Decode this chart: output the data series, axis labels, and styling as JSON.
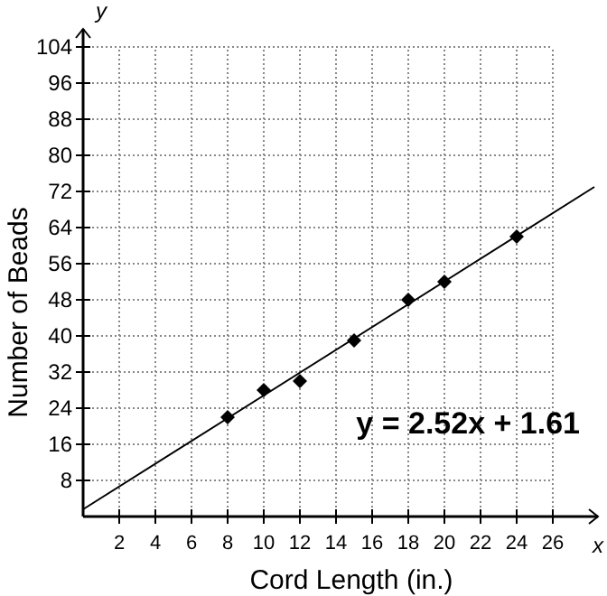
{
  "chart_data": {
    "type": "scatter",
    "xlabel": "Cord Length (in.)",
    "ylabel": "Number of Beads",
    "annotations": [
      "y = 2.52x + 1.61",
      "x",
      "y"
    ],
    "series": [
      {
        "color": "#000000",
        "x": [
          8,
          10,
          12,
          15,
          18,
          20,
          24
        ],
        "values": [
          22,
          28,
          30,
          39,
          48,
          52,
          62
        ],
        "marker": "diamond"
      },
      {
        "type": "line",
        "color": "#000000",
        "x": [
          0,
          28.3
        ],
        "values": [
          1.6,
          73
        ]
      }
    ],
    "xlim": [
      0,
      28.5
    ],
    "ylim": [
      0,
      108
    ],
    "xticks": [
      2,
      4,
      6,
      8,
      10,
      12,
      14,
      16,
      18,
      20,
      22,
      24,
      26
    ],
    "yticks": [
      8,
      16,
      24,
      32,
      40,
      48,
      56,
      64,
      72,
      80,
      88,
      96,
      104
    ],
    "grid": true
  }
}
